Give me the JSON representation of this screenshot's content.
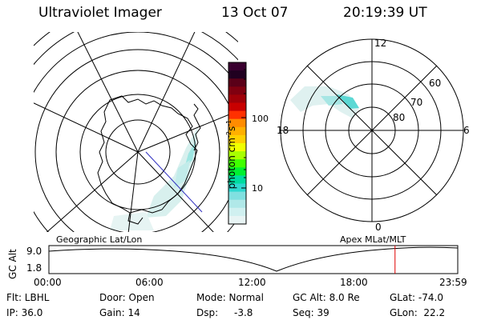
{
  "header": {
    "instrument": "Ultraviolet Imager",
    "date": "13 Oct 07",
    "time": "20:19:39 UT"
  },
  "left_panel": {
    "label": "Geographic Lat/Lon"
  },
  "right_panel": {
    "label": "Apex MLat/MLT",
    "mlt_labels": [
      "12",
      "18",
      "6",
      "0"
    ],
    "mlat_labels": [
      "60",
      "70",
      "80"
    ]
  },
  "colorbar": {
    "unit_label": "photon cm",
    "unit_sup1": "-2",
    "unit_mid": "s",
    "unit_sup2": "-1",
    "ticks": [
      "100",
      "10"
    ],
    "colors": [
      "#3a0030",
      "#200020",
      "#5a0018",
      "#800010",
      "#a00008",
      "#c80000",
      "#ff3000",
      "#ff8c00",
      "#ffb000",
      "#ffd000",
      "#f0ff00",
      "#a8ff00",
      "#40ff00",
      "#00f030",
      "#00dca0",
      "#30d8d0",
      "#80e0e0",
      "#b0e8e8",
      "#d0f0f0",
      "#e8f4f4"
    ]
  },
  "orbit_plot": {
    "ylabel": "GC Alt",
    "yticks": [
      "9.0",
      "1.8"
    ],
    "xticks": [
      "00:00",
      "06:00",
      "12:00",
      "18:00",
      "23:59"
    ],
    "current_time_fraction": 0.8466
  },
  "footer": {
    "row1": {
      "filter": "Flt: LBHL",
      "door": "Door: Open",
      "mode": "Mode: Normal",
      "gc_alt": "GC Alt: 8.0 Re",
      "glat": "GLat: -74.0"
    },
    "row2": {
      "ip": "IP: 36.0",
      "gain": "Gain: 14",
      "dsp_label": "Dsp:",
      "dsp_value": "-3.8",
      "seq": "Seq: 39",
      "glon": "GLon:  22.2"
    }
  }
}
